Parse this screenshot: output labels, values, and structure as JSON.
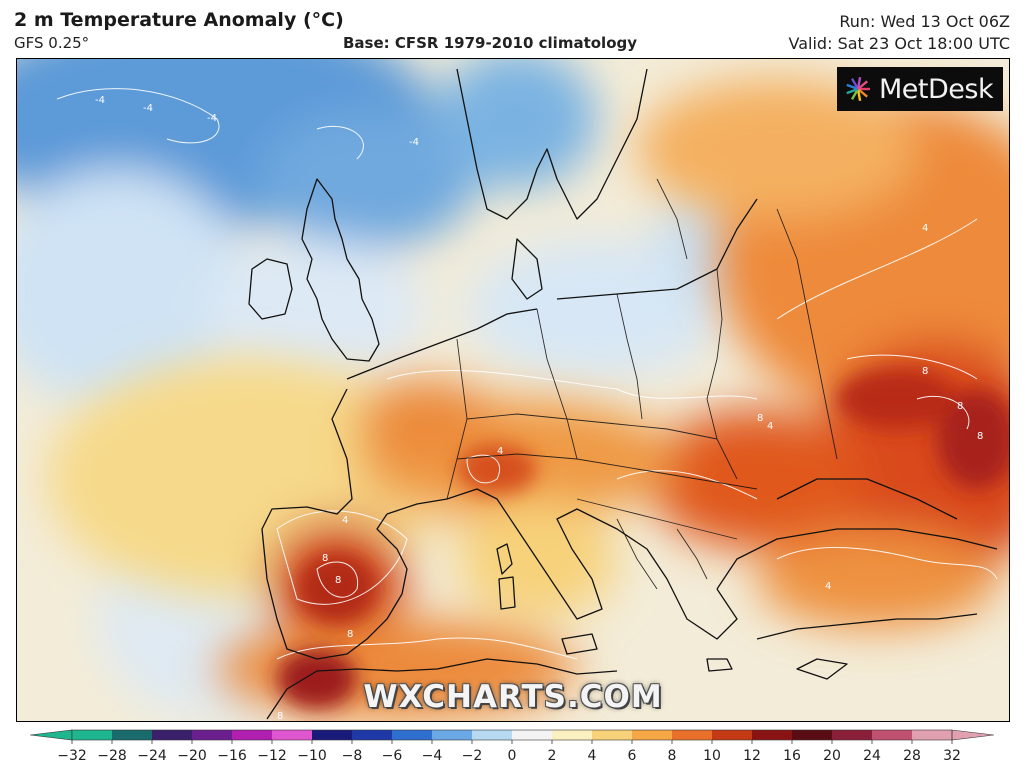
{
  "header": {
    "title": "2 m Temperature Anomaly (°C)",
    "model": "GFS 0.25°",
    "base": "Base: CFSR 1979-2010 climatology",
    "run": "Run: Wed 13 Oct 06Z",
    "valid": "Valid: Sat 23 Oct 18:00 UTC"
  },
  "logo": {
    "text": "MetDesk"
  },
  "watermark": "WXCHARTS.COM",
  "colorbar": {
    "ticks": [
      "−32",
      "−28",
      "−24",
      "−20",
      "−16",
      "−12",
      "−10",
      "−8",
      "−6",
      "−4",
      "−2",
      "0",
      "2",
      "4",
      "6",
      "8",
      "10",
      "12",
      "16",
      "20",
      "24",
      "28",
      "32"
    ],
    "colors": [
      "#1fb58f",
      "#1a6b6b",
      "#3a1f6b",
      "#6b1f8f",
      "#b01fb0",
      "#e055d0",
      "#1a1a7a",
      "#1f3aa8",
      "#2f6fd0",
      "#6aa8e6",
      "#b8d9f2",
      "#f4f4f4",
      "#fbf1c0",
      "#f8d27a",
      "#f5a845",
      "#e8702a",
      "#c43a14",
      "#8a1414",
      "#5a0c14",
      "#8a1f3a",
      "#c05070",
      "#e0a0b0"
    ]
  },
  "map_labels": {
    "contour_values": [
      "-4",
      "4",
      "8"
    ]
  }
}
